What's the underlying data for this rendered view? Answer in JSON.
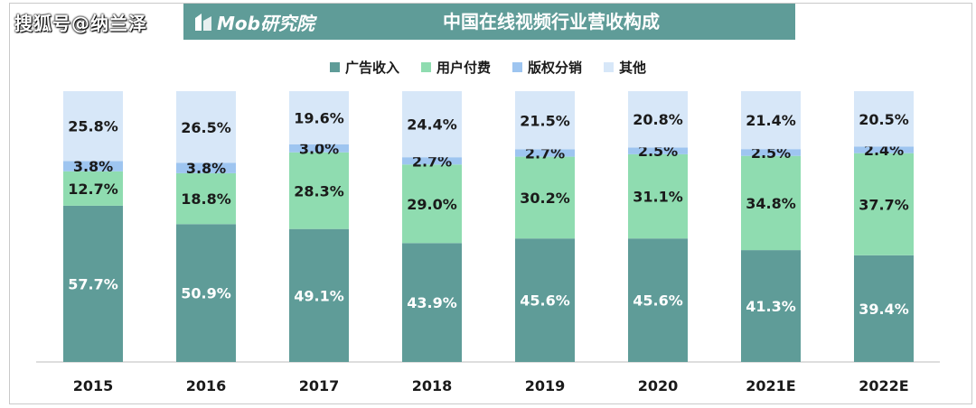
{
  "watermark_text": "搜狐号@纳兰泽",
  "brand": {
    "name": "Mob研究院",
    "logo_icon": "mob-logo-icon"
  },
  "chart_data": {
    "type": "bar",
    "stacked": true,
    "title": "中国在线视频行业营收构成",
    "categories": [
      "2015",
      "2016",
      "2017",
      "2018",
      "2019",
      "2020",
      "2021E",
      "2022E"
    ],
    "series": [
      {
        "name": "广告收入",
        "color": "#5f9c98",
        "labelColor": "#ffffff",
        "values": [
          57.7,
          50.9,
          49.1,
          43.9,
          45.6,
          45.6,
          41.3,
          39.4
        ]
      },
      {
        "name": "用户付费",
        "color": "#8fdcb0",
        "labelColor": "#1a1a1a",
        "values": [
          12.7,
          18.8,
          28.3,
          29.0,
          30.2,
          31.1,
          34.8,
          37.7
        ]
      },
      {
        "name": "版权分销",
        "color": "#9ec5f0",
        "labelColor": "#1a1a1a",
        "values": [
          3.8,
          3.8,
          3.0,
          2.7,
          2.7,
          2.5,
          2.5,
          2.4
        ]
      },
      {
        "name": "其他",
        "color": "#d7e7f8",
        "labelColor": "#1a1a1a",
        "values": [
          25.8,
          26.5,
          19.6,
          24.4,
          21.5,
          20.8,
          21.4,
          20.5
        ]
      }
    ],
    "ylim": [
      0,
      100
    ],
    "value_suffix": "%",
    "grid": false,
    "legend_position": "top-center"
  }
}
